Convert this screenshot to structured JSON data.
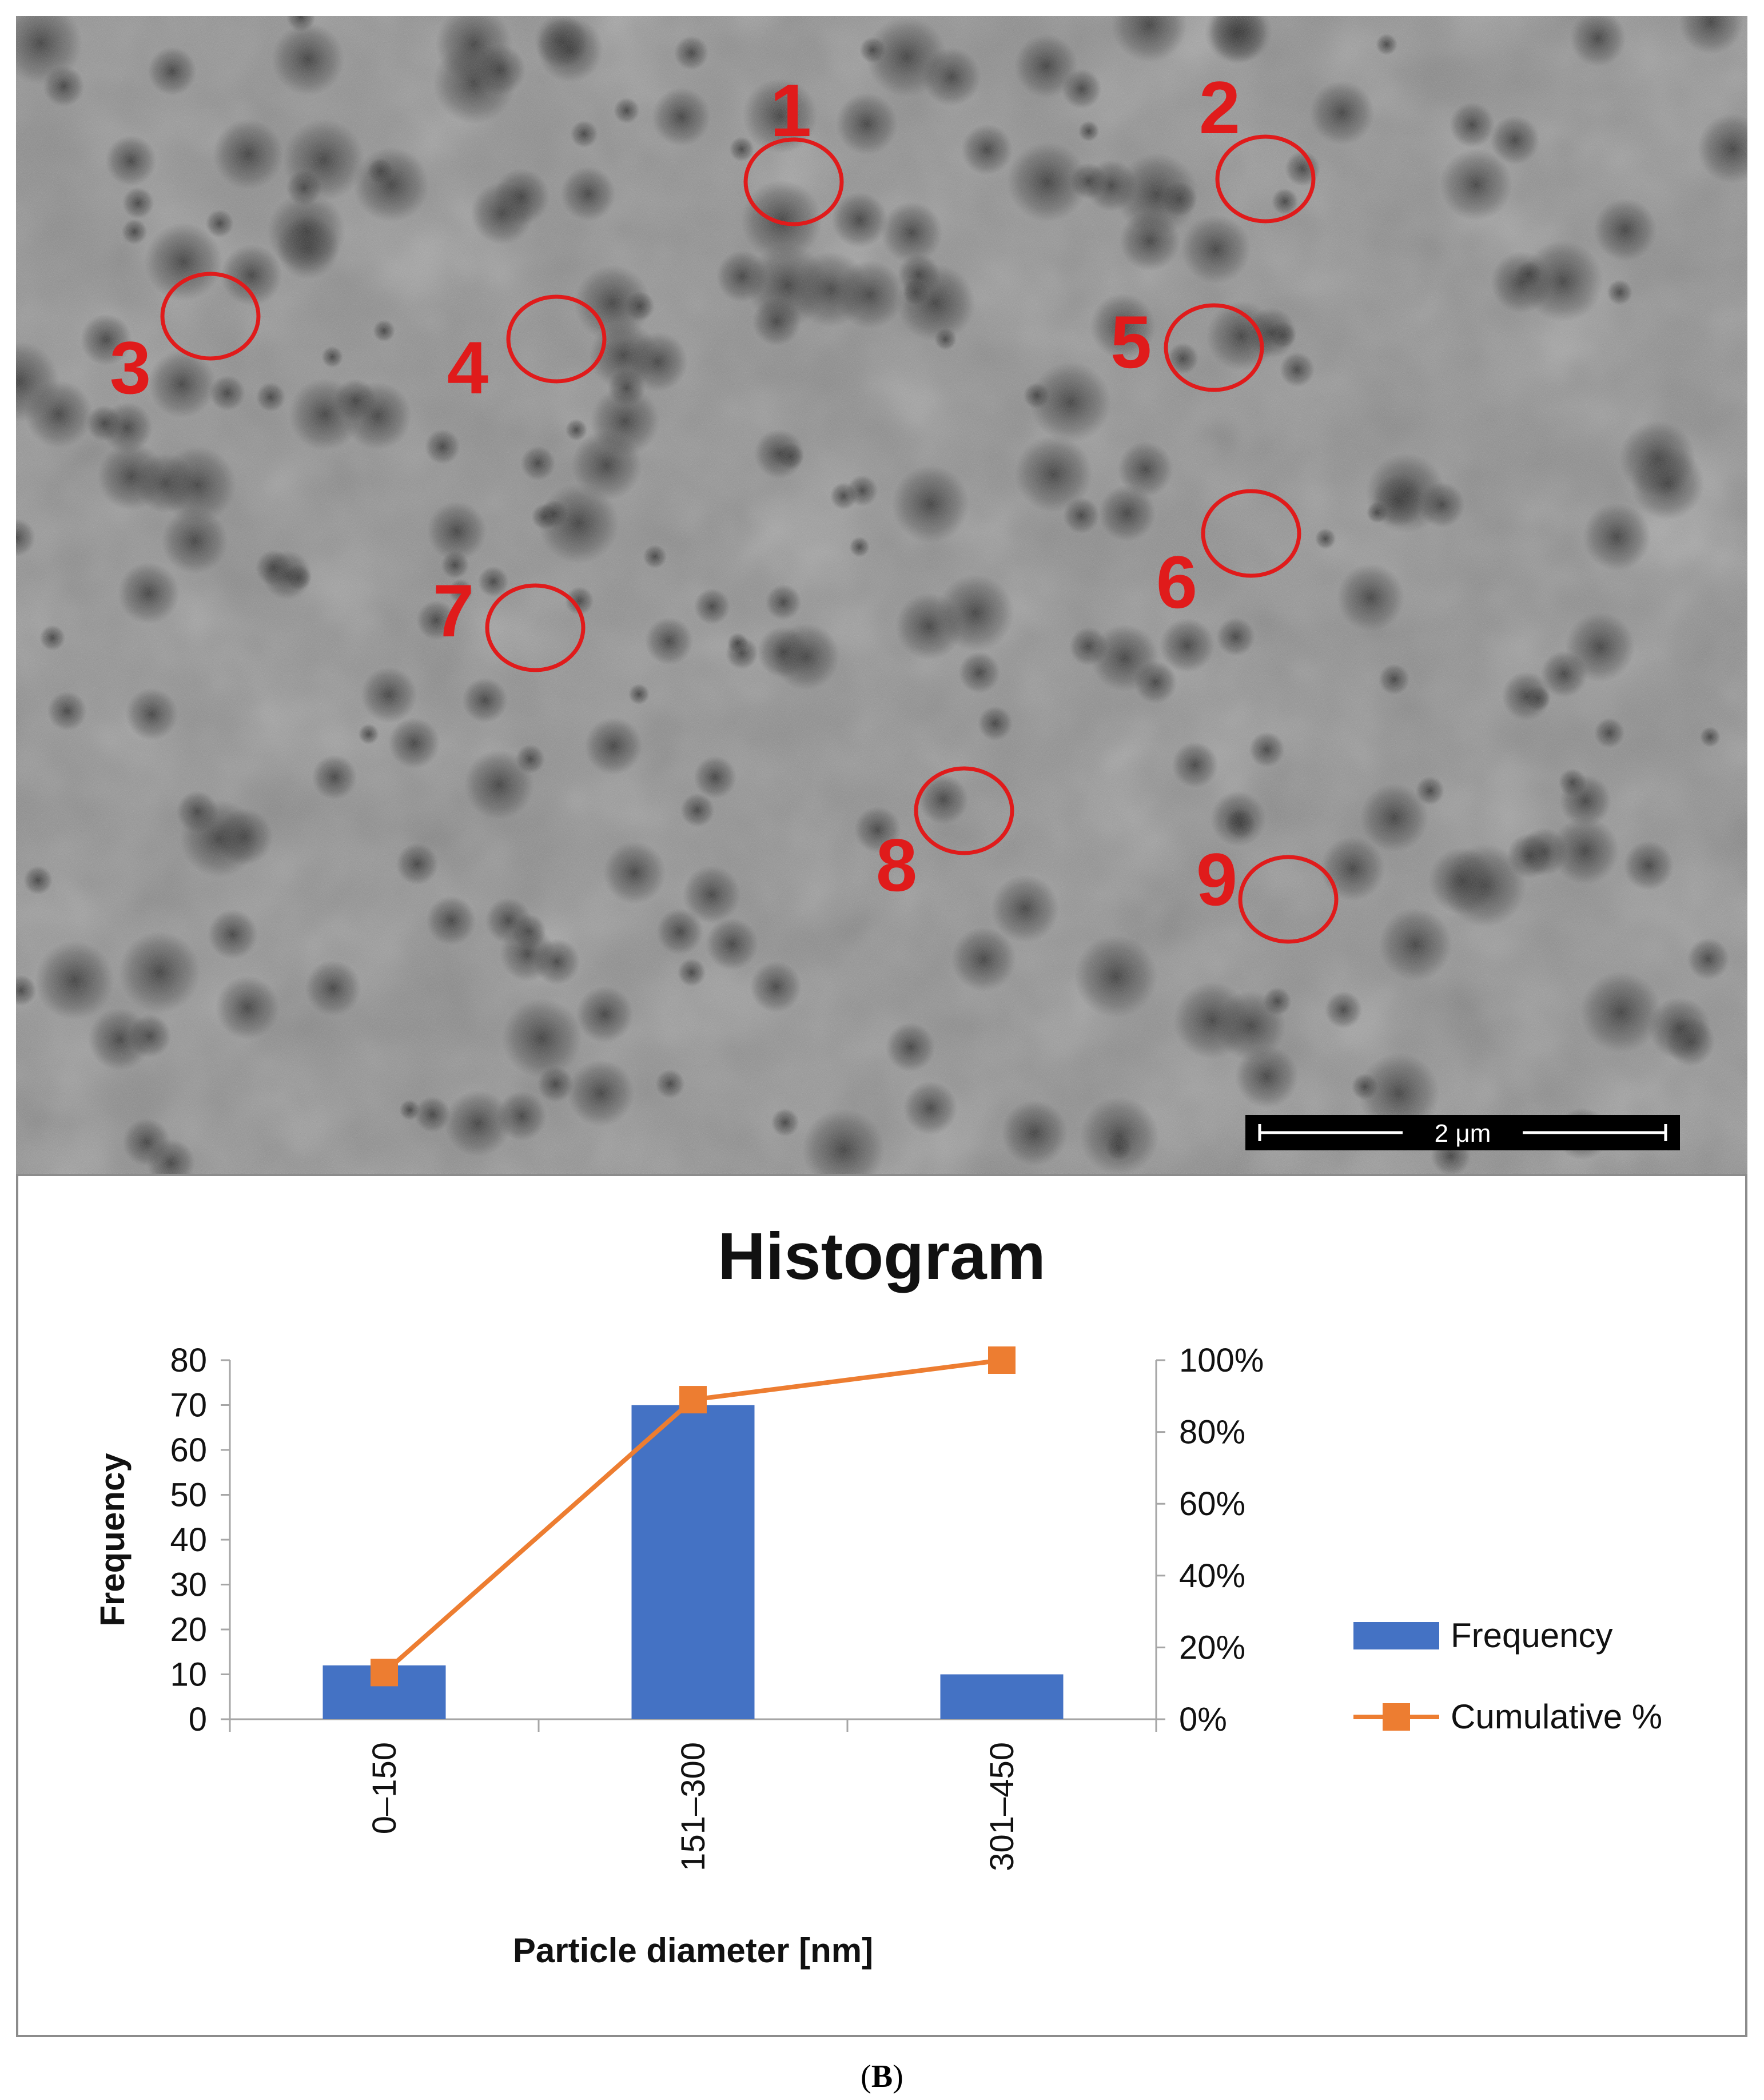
{
  "figure": {
    "caption_letter": "B",
    "scale_bar_label": "2 μm"
  },
  "particle_markers": [
    "1",
    "2",
    "3",
    "4",
    "5",
    "6",
    "7",
    "8",
    "9"
  ],
  "colors": {
    "bar": "#4472c4",
    "line": "#ed7d31",
    "marker_ring": "#e01b1b",
    "axis": "#a6a6a6"
  },
  "chart_data": {
    "type": "bar",
    "title": "Histogram",
    "categories": [
      "0–150",
      "151–300",
      "301–450"
    ],
    "xlabel": "Particle diameter [nm]",
    "ylabel": "Frequency",
    "ylim": [
      0,
      80
    ],
    "yticks": [
      "0",
      "10",
      "20",
      "30",
      "40",
      "50",
      "60",
      "70",
      "80"
    ],
    "y2lim": [
      0,
      100
    ],
    "y2ticks": [
      "0%",
      "20%",
      "40%",
      "60%",
      "80%",
      "100%"
    ],
    "series": [
      {
        "name": "Frequency",
        "type": "bar",
        "axis": "left",
        "values": [
          12,
          70,
          10
        ]
      },
      {
        "name": "Cumulative %",
        "type": "line",
        "axis": "right",
        "values": [
          13,
          89,
          100
        ]
      }
    ],
    "legend_position": "right"
  }
}
